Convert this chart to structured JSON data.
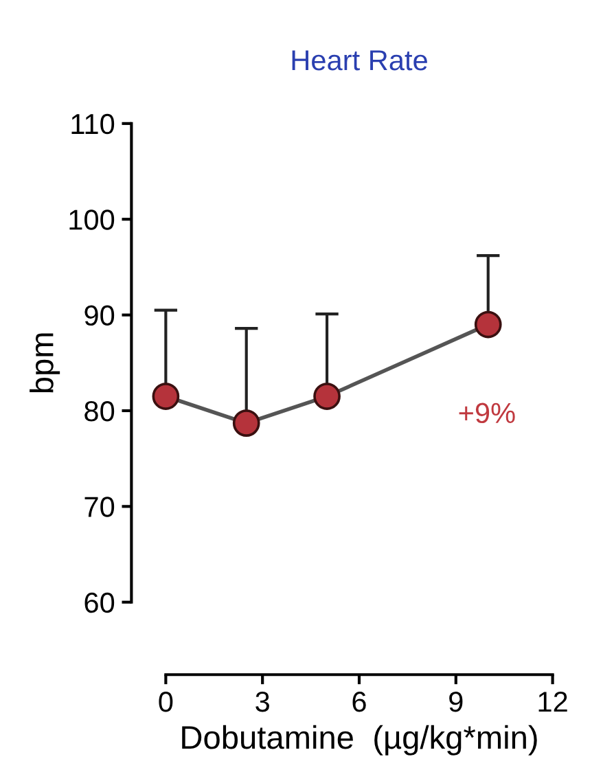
{
  "chart_data": {
    "type": "line",
    "title": "Heart Rate",
    "xlabel": "Dobutamine  (µg/kg*min)",
    "ylabel": "bpm",
    "x": [
      0,
      2.5,
      5,
      10
    ],
    "series": [
      {
        "color": "#b5333b",
        "values": [
          81.5,
          78.7,
          81.5,
          89
        ],
        "errors": [
          [
            81.5,
            90.5
          ],
          [
            78.7,
            88.6
          ],
          [
            81.5,
            90.1
          ],
          [
            89,
            96.2
          ]
        ]
      }
    ],
    "xlim": [
      0,
      12
    ],
    "xticks": [
      0,
      3,
      6,
      9,
      12
    ],
    "ylim": [
      60,
      110
    ],
    "yticks": [
      60,
      70,
      80,
      90,
      100,
      110
    ],
    "marker": "circle",
    "line_style": "solid",
    "grid": false,
    "legend": false,
    "annotations": [
      "+9%"
    ]
  }
}
